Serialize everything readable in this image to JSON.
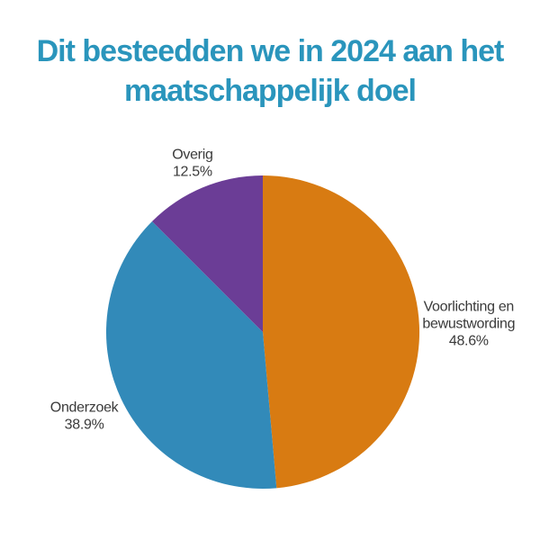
{
  "chart_data": {
    "type": "pie",
    "title": "Dit besteedden we in 2024 aan het maatschappelijk doel",
    "title_lines": [
      "Dit besteedden we in 2024 aan het",
      "maatschappelijk doel"
    ],
    "title_color": "#2A95BC",
    "start_angle_deg": 0,
    "direction": "clockwise",
    "slices": [
      {
        "name": "Voorlichting en bewustwording",
        "label_lines": [
          "Voorlichting en",
          "bewustwording"
        ],
        "pct_label": "48.6%",
        "value": 48.6,
        "color": "#D87B12"
      },
      {
        "name": "Onderzoek",
        "label_lines": [
          "Onderzoek"
        ],
        "pct_label": "38.9%",
        "value": 38.9,
        "color": "#328AB9"
      },
      {
        "name": "Overig",
        "label_lines": [
          "Overig"
        ],
        "pct_label": "12.5%",
        "value": 12.5,
        "color": "#6B3D96"
      }
    ],
    "layout": {
      "background": "#FFFFFF",
      "center": [
        292,
        369
      ],
      "radius": 174,
      "label_offsets": [
        55,
        45,
        30
      ],
      "label_font_px": 16,
      "label_line_height_px": 19,
      "label_color": "#3A3A3A",
      "legend": "none",
      "grid": "off"
    }
  }
}
